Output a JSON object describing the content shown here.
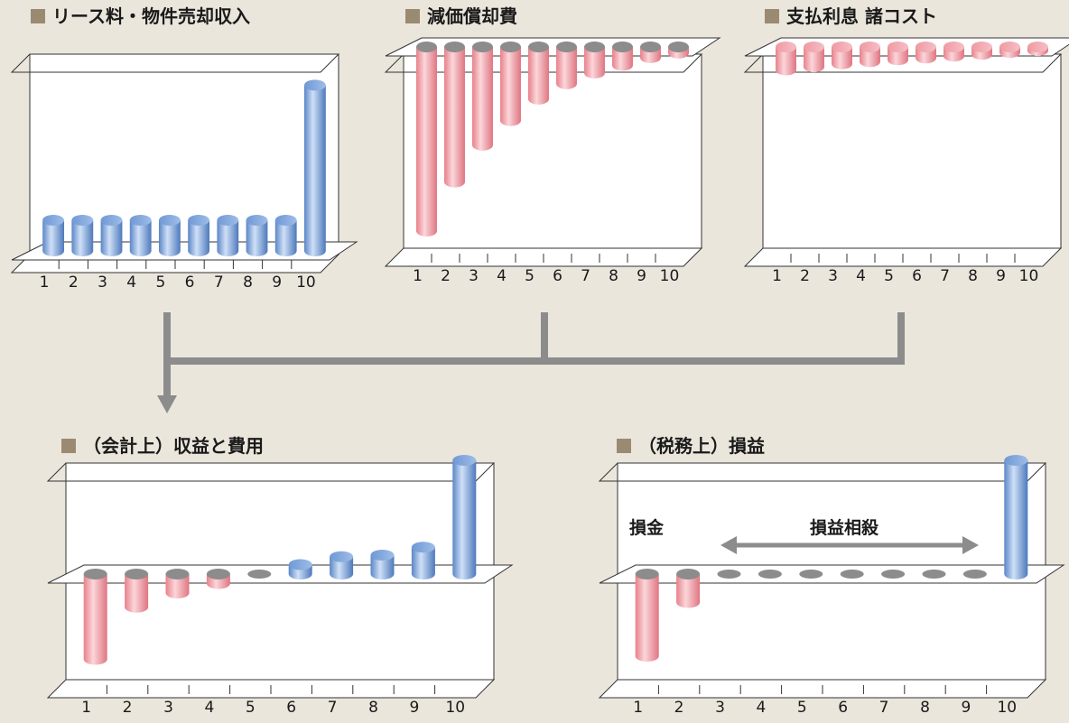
{
  "colors": {
    "background": "#ebe6dc",
    "title_square": "#9b8a72",
    "positive_bar": "#7ba6e0",
    "negative_bar": "#ef9aa1",
    "zero_disc": "#8c8c8c",
    "connector": "#8c8c8c"
  },
  "panels": [
    {
      "key": "lease",
      "title": "リース料・物件売却収入",
      "ticks": [
        "1",
        "2",
        "3",
        "4",
        "5",
        "6",
        "7",
        "8",
        "9",
        "10"
      ],
      "values": [
        1,
        1,
        1,
        1,
        1,
        1,
        1,
        1,
        1,
        5.4
      ]
    },
    {
      "key": "depreciation",
      "title": "減価償却費",
      "ticks": [
        "1",
        "2",
        "3",
        "4",
        "5",
        "6",
        "7",
        "8",
        "9",
        "10"
      ],
      "values": [
        -6,
        -4.4,
        -3.2,
        -2.4,
        -1.7,
        -1.2,
        -0.85,
        -0.6,
        -0.35,
        -0.2
      ]
    },
    {
      "key": "interest",
      "title": "支払利息 諸コスト",
      "ticks": [
        "1",
        "2",
        "3",
        "4",
        "5",
        "6",
        "7",
        "8",
        "9",
        "10"
      ],
      "values": [
        -0.75,
        -0.65,
        -0.55,
        -0.48,
        -0.42,
        -0.36,
        -0.3,
        -0.24,
        -0.18,
        -0.12
      ]
    },
    {
      "key": "accounting",
      "title": "（会計上）収益と費用",
      "ticks": [
        "1",
        "2",
        "3",
        "4",
        "5",
        "6",
        "7",
        "8",
        "9",
        "10"
      ],
      "values": [
        -2.7,
        -1.05,
        -0.6,
        -0.3,
        0,
        0.3,
        0.55,
        0.6,
        0.85,
        3.6
      ]
    },
    {
      "key": "tax",
      "title": "（税務上）損益",
      "ticks": [
        "1",
        "2",
        "3",
        "4",
        "5",
        "6",
        "7",
        "8",
        "9",
        "10"
      ],
      "values": [
        -2.6,
        -0.9,
        0,
        0,
        0,
        0,
        0,
        0,
        0,
        3.6
      ],
      "annotations": {
        "loss_label": "損金",
        "offset_label": "損益相殺"
      }
    }
  ]
}
